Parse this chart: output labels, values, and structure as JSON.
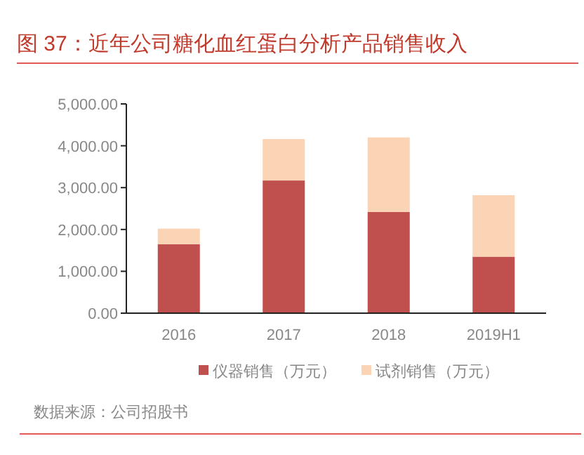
{
  "chart_data": {
    "type": "bar",
    "stacked": true,
    "title": "图 37：近年公司糖化血红蛋白分析产品销售收入",
    "categories": [
      "2016",
      "2017",
      "2018",
      "2019H1"
    ],
    "series": [
      {
        "name": "仪器销售（万元）",
        "color": "#c0504d",
        "values": [
          1650,
          3170,
          2420,
          1350
        ]
      },
      {
        "name": "试剂销售（万元）",
        "color": "#fad4b4",
        "values": [
          370,
          990,
          1780,
          1470
        ]
      }
    ],
    "ylim": [
      0,
      5000
    ],
    "yticks": [
      {
        "value": 0,
        "label": "0.00"
      },
      {
        "value": 1000,
        "label": "1,000.00"
      },
      {
        "value": 2000,
        "label": "2,000.00"
      },
      {
        "value": 3000,
        "label": "3,000.00"
      },
      {
        "value": 4000,
        "label": "4,000.00"
      },
      {
        "value": 5000,
        "label": "5,000.00"
      }
    ],
    "legend": "bottom",
    "grid": false,
    "annotations": [
      "数据来源：公司招股书"
    ]
  }
}
